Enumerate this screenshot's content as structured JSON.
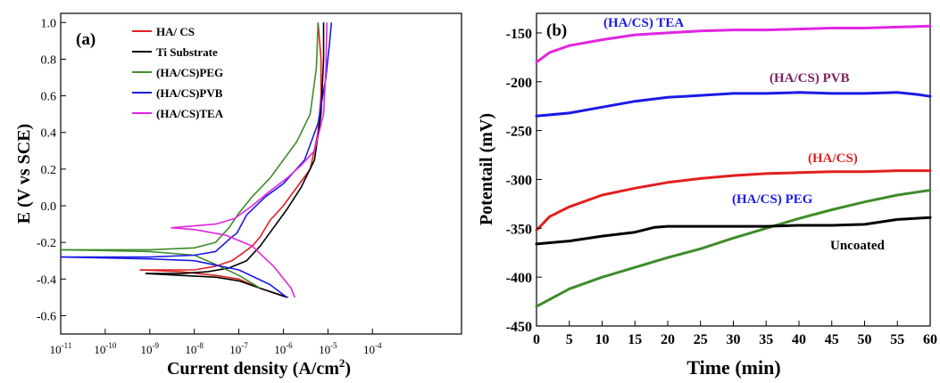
{
  "chart_data": [
    {
      "type": "line",
      "panel_label": "(a)",
      "xlabel": "Current density (A/cm",
      "xlabel_sup": "2",
      "xlabel_close": ")",
      "ylabel": "E (V vs SCE)",
      "x_scale": "log",
      "xlim": [
        1e-11,
        0.01
      ],
      "ylim": [
        -0.7,
        1.05
      ],
      "x_ticks": [
        {
          "base": "10",
          "exp": "-11"
        },
        {
          "base": "10",
          "exp": "-10"
        },
        {
          "base": "10",
          "exp": "-9"
        },
        {
          "base": "10",
          "exp": "-8"
        },
        {
          "base": "10",
          "exp": "-7"
        },
        {
          "base": "10",
          "exp": "-6"
        },
        {
          "base": "10",
          "exp": "-5"
        },
        {
          "base": "10",
          "exp": "-4"
        }
      ],
      "y_ticks": [
        "-0.6",
        "-0.4",
        "-0.2",
        "0.0",
        "0.2",
        "0.4",
        "0.6",
        "0.8",
        "1.0"
      ],
      "legend_position": "top-left",
      "series": [
        {
          "name": "HA/ CS",
          "color": "#e02020",
          "x": [
            6e-10,
            2e-09,
            1e-08,
            3e-08,
            7e-08,
            1.2e-07,
            2e-07,
            3e-07,
            5e-07,
            1e-06,
            2e-06,
            4e-06,
            6e-06,
            7e-06,
            7e-06,
            6e-06
          ],
          "y": [
            -0.35,
            -0.35,
            -0.35,
            -0.33,
            -0.3,
            -0.26,
            -0.22,
            -0.17,
            -0.08,
            0.0,
            0.1,
            0.2,
            0.4,
            0.6,
            0.8,
            1.0
          ]
        },
        {
          "name": "HA/ CS cathodic",
          "color": "#e02020",
          "x": [
            6e-10,
            5e-09,
            3e-08,
            1e-07,
            3e-07,
            1.3e-06
          ],
          "y": [
            -0.35,
            -0.36,
            -0.38,
            -0.4,
            -0.45,
            -0.5
          ]
        },
        {
          "name": "Ti Substrate",
          "color": "#000000",
          "x": [
            8e-10,
            5e-09,
            2e-08,
            6e-08,
            1.5e-07,
            3e-07,
            6e-07,
            1.2e-06,
            2.5e-06,
            5e-06,
            7e-06,
            8e-06,
            8e-06
          ],
          "y": [
            -0.37,
            -0.37,
            -0.36,
            -0.34,
            -0.3,
            -0.22,
            -0.12,
            -0.02,
            0.1,
            0.25,
            0.5,
            0.8,
            1.0
          ]
        },
        {
          "name": "Ti Substrate cathodic",
          "color": "#000000",
          "x": [
            8e-10,
            5e-09,
            3e-08,
            1e-07,
            3e-07,
            1.2e-06
          ],
          "y": [
            -0.37,
            -0.38,
            -0.39,
            -0.41,
            -0.45,
            -0.5
          ]
        },
        {
          "name": "(HA/CS)PEG",
          "color": "#3e8c2a",
          "x": [
            1e-11,
            1e-09,
            1e-08,
            3e-08,
            6e-08,
            1e-07,
            2e-07,
            5e-07,
            1e-06,
            2e-06,
            4e-06,
            5.5e-06,
            6e-06
          ],
          "y": [
            -0.24,
            -0.24,
            -0.23,
            -0.2,
            -0.12,
            -0.04,
            0.05,
            0.15,
            0.25,
            0.35,
            0.5,
            0.75,
            1.0
          ]
        },
        {
          "name": "(HA/CS)PEG cathodic",
          "color": "#3e8c2a",
          "x": [
            1e-11,
            1e-09,
            1e-08,
            3e-08,
            1e-07,
            3e-07
          ],
          "y": [
            -0.24,
            -0.25,
            -0.27,
            -0.32,
            -0.38,
            -0.45
          ]
        },
        {
          "name": "(HA/CS)PVB",
          "color": "#1a1ae6",
          "x": [
            1e-11,
            1e-09,
            1e-08,
            3e-08,
            7e-08,
            9e-08,
            1.5e-07,
            4e-07,
            1e-06,
            3e-06,
            6e-06,
            9e-06,
            1.1e-05,
            1.2e-05
          ],
          "y": [
            -0.28,
            -0.28,
            -0.27,
            -0.25,
            -0.17,
            -0.15,
            -0.05,
            0.05,
            0.12,
            0.25,
            0.45,
            0.7,
            0.9,
            1.0
          ]
        },
        {
          "name": "(HA/CS)PVB cathodic",
          "color": "#1a1ae6",
          "x": [
            1e-11,
            1e-09,
            1e-08,
            1e-07,
            5e-07,
            1.2e-06
          ],
          "y": [
            -0.28,
            -0.29,
            -0.3,
            -0.35,
            -0.43,
            -0.5
          ]
        },
        {
          "name": "(HA/CS)TEA",
          "color": "#e026e0",
          "x": [
            3e-09,
            1e-08,
            3e-08,
            8e-08,
            2e-07,
            5e-07,
            1.2e-06,
            2.5e-06,
            5e-06,
            8e-06,
            9e-06,
            9.5e-06
          ],
          "y": [
            -0.12,
            -0.11,
            -0.1,
            -0.07,
            0.0,
            0.08,
            0.15,
            0.22,
            0.3,
            0.5,
            0.75,
            1.0
          ]
        },
        {
          "name": "(HA/CS)TEA cathodic",
          "color": "#e026e0",
          "x": [
            3e-09,
            1e-08,
            5e-08,
            2e-07,
            6e-07,
            1.5e-06,
            1.8e-06
          ],
          "y": [
            -0.12,
            -0.13,
            -0.16,
            -0.22,
            -0.33,
            -0.45,
            -0.5
          ]
        }
      ],
      "legend": [
        {
          "label": "HA/ CS",
          "color": "#e02020"
        },
        {
          "label": "Ti Substrate",
          "color": "#000000"
        },
        {
          "label": "(HA/CS)PEG",
          "color": "#3e8c2a"
        },
        {
          "label": "(HA/CS)PVB",
          "color": "#1a1ae6"
        },
        {
          "label": "(HA/CS)TEA",
          "color": "#e026e0"
        }
      ]
    },
    {
      "type": "line",
      "panel_label": "(b)",
      "xlabel": "Time (min)",
      "ylabel": "Potentail (mV)",
      "xlim": [
        0,
        60
      ],
      "ylim": [
        -450,
        -130
      ],
      "x_ticks": [
        "0",
        "5",
        "10",
        "15",
        "20",
        "25",
        "30",
        "35",
        "40",
        "45",
        "50",
        "55",
        "60"
      ],
      "y_ticks": [
        "-150",
        "-200",
        "-250",
        "-300",
        "-350",
        "-400",
        "-450"
      ],
      "series": [
        {
          "name": "(HA/CS) TEA",
          "color": "#e026e0",
          "x": [
            0,
            2,
            5,
            10,
            15,
            20,
            25,
            30,
            35,
            40,
            45,
            50,
            55,
            60
          ],
          "y": [
            -180,
            -170,
            -163,
            -157,
            -152,
            -150,
            -148,
            -147,
            -147,
            -146,
            -145,
            -145,
            -144,
            -143
          ]
        },
        {
          "name": "(HA/CS) PVB",
          "color": "#1a1ae6",
          "x": [
            0,
            5,
            10,
            15,
            20,
            25,
            30,
            35,
            40,
            45,
            50,
            55,
            58,
            60
          ],
          "y": [
            -235,
            -232,
            -226,
            -220,
            -216,
            -214,
            -212,
            -212,
            -211,
            -212,
            -212,
            -211,
            -213,
            -215
          ]
        },
        {
          "name": "(HA/CS)",
          "color": "#e02020",
          "x": [
            0,
            2,
            5,
            10,
            15,
            20,
            25,
            30,
            35,
            40,
            45,
            50,
            55,
            60
          ],
          "y": [
            -352,
            -338,
            -328,
            -316,
            -309,
            -303,
            -299,
            -296,
            -294,
            -293,
            -292,
            -292,
            -291,
            -291
          ]
        },
        {
          "name": "(HA/CS) PEG",
          "color": "#3e8c2a",
          "x": [
            0,
            5,
            10,
            15,
            20,
            25,
            30,
            35,
            40,
            45,
            50,
            55,
            60
          ],
          "y": [
            -430,
            -412,
            -400,
            -390,
            -380,
            -371,
            -360,
            -350,
            -340,
            -331,
            -323,
            -316,
            -311
          ]
        },
        {
          "name": "Uncoated",
          "color": "#000000",
          "x": [
            0,
            5,
            10,
            15,
            18,
            20,
            25,
            30,
            35,
            40,
            45,
            50,
            55,
            60
          ],
          "y": [
            -366,
            -363,
            -358,
            -354,
            -349,
            -348,
            -348,
            -348,
            -348,
            -347,
            -347,
            -346,
            -341,
            -339
          ]
        }
      ],
      "annotations": [
        {
          "text": "(HA/CS) TEA",
          "color": "#1a1ae6"
        },
        {
          "text": "(HA/CS) PVB",
          "color": "#7a1f5e"
        },
        {
          "text": "(HA/CS)",
          "color": "#e02020"
        },
        {
          "text": "(HA/CS) PEG",
          "color": "#1a1ae6"
        },
        {
          "text": "Uncoated",
          "color": "#000000"
        }
      ]
    }
  ]
}
